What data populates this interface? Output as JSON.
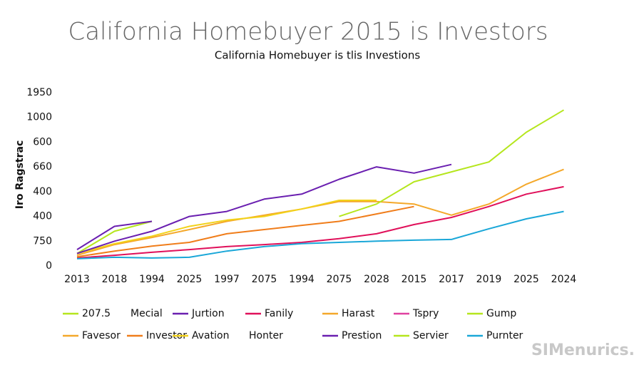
{
  "chart_data": {
    "type": "line",
    "title": "California Homebuyer 2015 is Investors",
    "subtitle": "California Homebuyer is tlis Investions",
    "y_label": "Iro Ragstrac",
    "watermark": "SIMenurics.",
    "categories": [
      "2013",
      "2018",
      "1994",
      "2025",
      "1997",
      "2075",
      "1994",
      "2075",
      "2028",
      "2015",
      "2017",
      "2019",
      "2025",
      "2024"
    ],
    "ylim": [
      0,
      7
    ],
    "yticks": [
      {
        "value": 0,
        "label": "0"
      },
      {
        "value": 1,
        "label": "750"
      },
      {
        "value": 2,
        "label": "400"
      },
      {
        "value": 3,
        "label": "400"
      },
      {
        "value": 4,
        "label": "660"
      },
      {
        "value": 5,
        "label": "600"
      },
      {
        "value": 6,
        "label": "1000"
      },
      {
        "value": 7,
        "label": "1950"
      }
    ],
    "series": [
      {
        "name": "207.5",
        "color": "#b5e61d",
        "values": [
          0.5,
          1.4,
          1.8,
          null,
          null,
          null,
          null,
          null,
          null,
          null,
          null,
          null,
          null,
          null
        ]
      },
      {
        "name": "Mecial",
        "color": null,
        "values": [
          null,
          null,
          null,
          null,
          null,
          null,
          null,
          null,
          null,
          null,
          null,
          null,
          null,
          null
        ]
      },
      {
        "name": "Jurtion",
        "color": "#6a1fb0",
        "values": [
          0.66,
          1.6,
          1.8,
          null,
          null,
          null,
          null,
          null,
          null,
          null,
          null,
          null,
          null,
          null
        ]
      },
      {
        "name": "Fanily",
        "color": "#e0105a",
        "values": [
          0.32,
          0.43,
          0.55,
          0.66,
          0.78,
          0.86,
          0.95,
          1.1,
          1.3,
          1.67,
          1.96,
          2.4,
          2.9,
          3.2
        ]
      },
      {
        "name": "Harast",
        "color": "#f4a82a",
        "values": [
          0.43,
          0.86,
          1.15,
          1.47,
          1.8,
          2.05,
          2.3,
          2.6,
          2.6,
          2.5,
          2.05,
          2.5,
          3.3,
          3.9
        ]
      },
      {
        "name": "Tspry",
        "color": "#e040a0",
        "values": [
          null,
          null,
          null,
          null,
          null,
          null,
          null,
          null,
          null,
          null,
          null,
          null,
          null,
          null
        ]
      },
      {
        "name": "Gump",
        "color": "#b5e61d",
        "values": [
          null,
          null,
          null,
          null,
          null,
          null,
          null,
          2.0,
          2.5,
          3.4,
          3.8,
          4.2,
          5.4,
          6.3
        ]
      },
      {
        "name": "Favesor",
        "color": "#f4a82a",
        "values": [
          null,
          null,
          null,
          null,
          null,
          null,
          null,
          null,
          null,
          null,
          null,
          null,
          null,
          null
        ]
      },
      {
        "name": "Investor",
        "color": "#f07d1a",
        "values": [
          0.37,
          0.6,
          0.8,
          0.95,
          1.3,
          1.47,
          1.64,
          1.8,
          2.1,
          2.4,
          null,
          null,
          null,
          null
        ]
      },
      {
        "name": "Avation",
        "color": "#f2d21a",
        "values": [
          0.5,
          0.9,
          1.2,
          1.6,
          1.85,
          2.0,
          2.3,
          2.65,
          2.65,
          null,
          null,
          null,
          null,
          null
        ]
      },
      {
        "name": "Honter",
        "color": null,
        "values": [
          null,
          null,
          null,
          null,
          null,
          null,
          null,
          null,
          null,
          null,
          null,
          null,
          null,
          null
        ]
      },
      {
        "name": "Prestion",
        "color": "#6a1fb0",
        "values": [
          0.5,
          1.0,
          1.4,
          2.0,
          2.2,
          2.7,
          2.9,
          3.5,
          4.0,
          3.75,
          4.1,
          null,
          null,
          null
        ]
      },
      {
        "name": "Servier",
        "color": "#b5e61d",
        "values": [
          null,
          null,
          null,
          null,
          null,
          null,
          null,
          null,
          null,
          null,
          null,
          null,
          null,
          null
        ]
      },
      {
        "name": "Purnter",
        "color": "#1aa7d8",
        "values": [
          0.29,
          0.35,
          0.32,
          0.35,
          0.6,
          0.78,
          0.9,
          0.95,
          1.0,
          1.04,
          1.07,
          1.5,
          1.9,
          2.2
        ]
      }
    ]
  }
}
